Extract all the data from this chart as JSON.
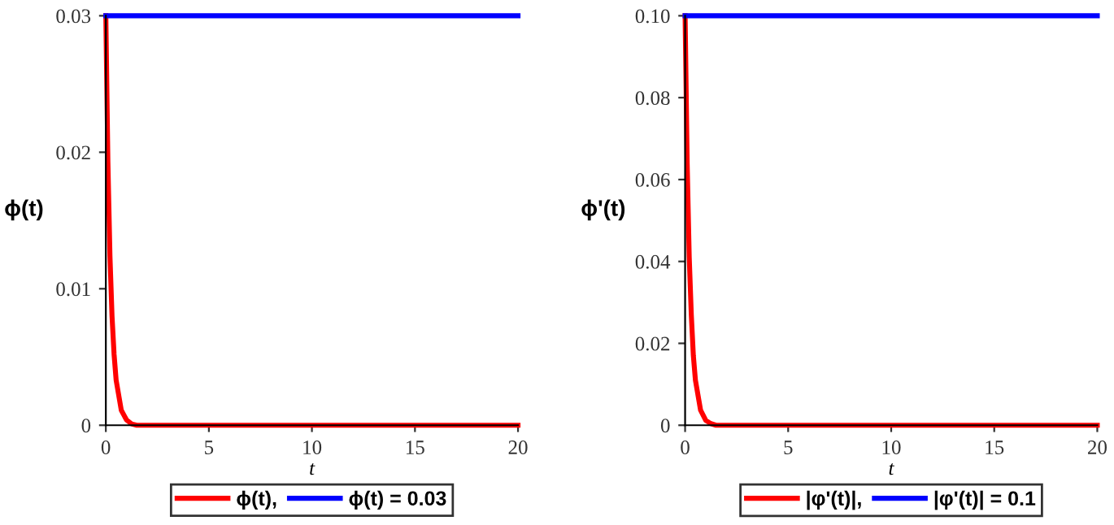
{
  "chart_data": [
    {
      "type": "line",
      "xlabel": "t",
      "ylabel": "ϕ(t)",
      "xlim": [
        0,
        20
      ],
      "ylim": [
        0,
        0.03
      ],
      "xticks": [
        0,
        5,
        10,
        15,
        20
      ],
      "yticks": [
        0,
        0.01,
        0.02,
        0.03
      ],
      "grid": false,
      "legend": "bottom",
      "line_style": "solid",
      "marker": "none",
      "series": [
        {
          "name": "ϕ(t),",
          "color": "#ff0000",
          "x": [
            0,
            0.1,
            0.2,
            0.3,
            0.4,
            0.5,
            0.75,
            1,
            1.25,
            1.5,
            2,
            3,
            5,
            10,
            20
          ],
          "values": [
            0.03,
            0.0193,
            0.0124,
            0.008,
            0.0052,
            0.0033,
            0.0011,
            0.0004,
            0.0001,
            0,
            0,
            0,
            0,
            0,
            0
          ]
        },
        {
          "name": "ϕ(t) = 0.03",
          "color": "#0000ff",
          "x": [
            0,
            20
          ],
          "values": [
            0.03,
            0.03
          ]
        }
      ]
    },
    {
      "type": "line",
      "xlabel": "t",
      "ylabel": "ϕ'(t)",
      "xlim": [
        0,
        20
      ],
      "ylim": [
        0,
        0.1
      ],
      "xticks": [
        0,
        5,
        10,
        15,
        20
      ],
      "yticks": [
        0,
        0.02,
        0.04,
        0.06,
        0.08,
        {
          "value": 0.1,
          "label": "0.10"
        }
      ],
      "grid": false,
      "legend": "bottom",
      "line_style": "solid",
      "marker": "none",
      "series": [
        {
          "name": "|φ'(t)|,",
          "color": "#ff0000",
          "x": [
            0,
            0.1,
            0.2,
            0.3,
            0.4,
            0.5,
            0.75,
            1,
            1.25,
            1.5,
            2,
            3,
            5,
            10,
            20
          ],
          "values": [
            0.1,
            0.064,
            0.041,
            0.027,
            0.017,
            0.011,
            0.0037,
            0.0012,
            0.0004,
            0,
            0,
            0,
            0,
            0,
            0
          ]
        },
        {
          "name": "|φ'(t)| = 0.1",
          "color": "#0000ff",
          "x": [
            0,
            20
          ],
          "values": [
            0.1,
            0.1
          ]
        }
      ]
    }
  ]
}
